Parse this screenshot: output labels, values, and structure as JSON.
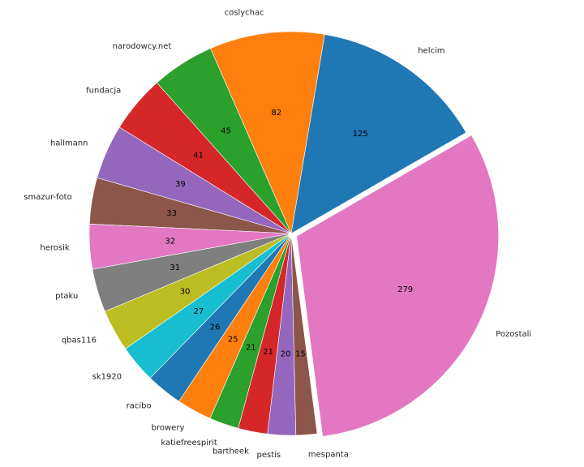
{
  "chart_data": {
    "type": "pie",
    "title": "",
    "start_angle_deg": 30,
    "explode": "Pozostali",
    "slices": [
      {
        "label": "helcim",
        "value": 125,
        "color": "#1f77b4"
      },
      {
        "label": "coslychac",
        "value": 82,
        "color": "#ff7f0e"
      },
      {
        "label": "narodowcy.net",
        "value": 45,
        "color": "#2ca02c"
      },
      {
        "label": "fundacja",
        "value": 41,
        "color": "#d62728"
      },
      {
        "label": "hallmann",
        "value": 39,
        "color": "#9467bd"
      },
      {
        "label": "smazur-foto",
        "value": 33,
        "color": "#8c564b"
      },
      {
        "label": "herosik",
        "value": 32,
        "color": "#e377c2"
      },
      {
        "label": "ptaku",
        "value": 31,
        "color": "#7f7f7f"
      },
      {
        "label": "qbas116",
        "value": 30,
        "color": "#bcbd22"
      },
      {
        "label": "sk1920",
        "value": 27,
        "color": "#17becf"
      },
      {
        "label": "racibo",
        "value": 26,
        "color": "#1f77b4"
      },
      {
        "label": "browery",
        "value": 25,
        "color": "#ff7f0e"
      },
      {
        "label": "katiefreespirit",
        "value": 21,
        "color": "#2ca02c"
      },
      {
        "label": "bartheek",
        "value": 21,
        "color": "#d62728"
      },
      {
        "label": "pestis",
        "value": 20,
        "color": "#9467bd"
      },
      {
        "label": "mespanta",
        "value": 15,
        "color": "#8c564b"
      },
      {
        "label": "Pozostali",
        "value": 279,
        "color": "#e377c2"
      }
    ]
  }
}
